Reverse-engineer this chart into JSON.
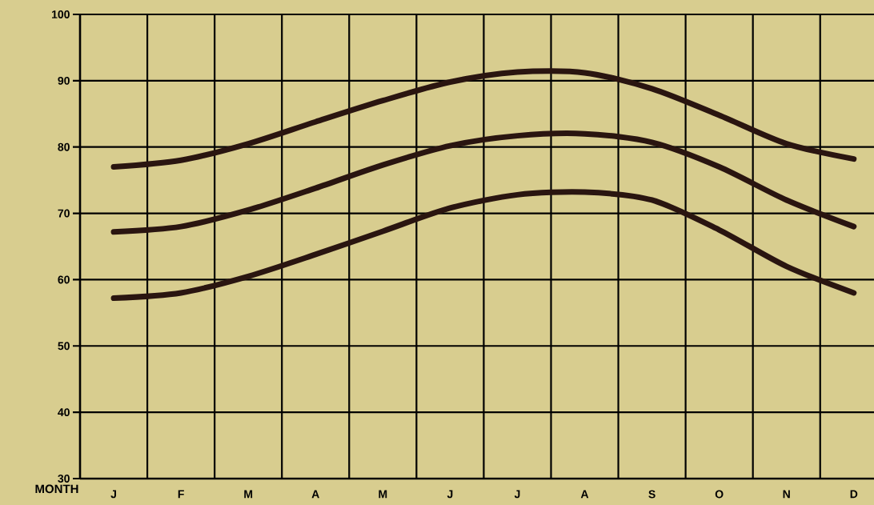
{
  "chart_data": {
    "type": "line",
    "xlabel": "MONTH",
    "categories": [
      "J",
      "F",
      "M",
      "A",
      "M",
      "J",
      "J",
      "A",
      "S",
      "O",
      "N",
      "D"
    ],
    "ylim": [
      30,
      100
    ],
    "yticks": [
      30,
      40,
      50,
      60,
      70,
      80,
      90,
      100
    ],
    "grid": true,
    "series": [
      {
        "color": "#2a1510",
        "values": [
          77,
          78,
          80.5,
          83.8,
          87,
          89.8,
          91.3,
          91.2,
          88.8,
          84.8,
          80.5,
          78.2
        ]
      },
      {
        "color": "#2a1510",
        "values": [
          67.2,
          68,
          70.5,
          73.8,
          77.3,
          80.2,
          81.7,
          82,
          80.7,
          77,
          72,
          68
        ]
      },
      {
        "color": "#2a1510",
        "values": [
          57.2,
          58,
          60.5,
          63.8,
          67.3,
          70.8,
          72.8,
          73.2,
          72,
          67.5,
          62,
          58
        ]
      }
    ]
  }
}
